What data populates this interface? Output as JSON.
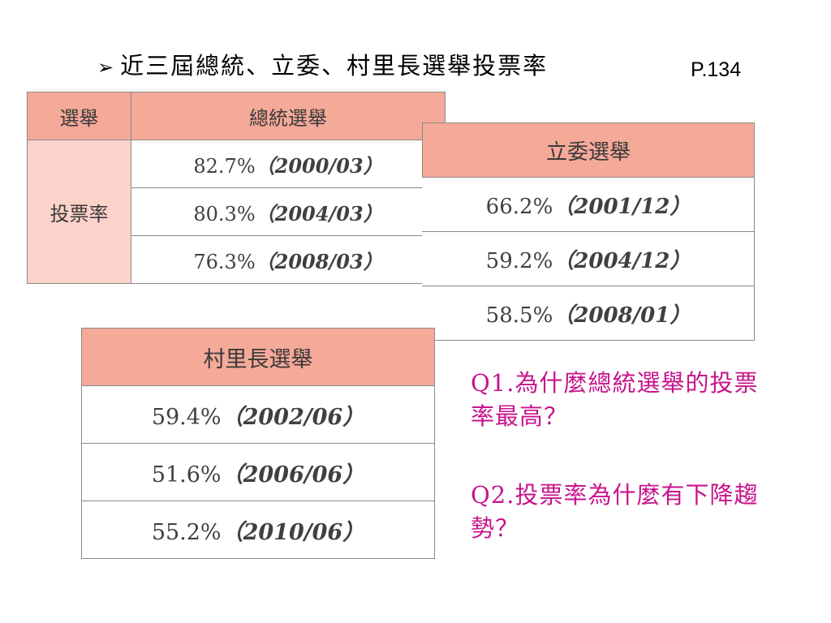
{
  "title": {
    "bullet": "➢",
    "text": "近三屆總統、立委、村里長選舉投票率",
    "page_ref": "P.134"
  },
  "presidential": {
    "col_label": "選舉",
    "header": "總統選舉",
    "row_label": "投票率",
    "rows": [
      {
        "rate": "82.7%",
        "date": "（2000/03）"
      },
      {
        "rate": "80.3%",
        "date": "（2004/03）"
      },
      {
        "rate": "76.3%",
        "date": "（2008/03）"
      }
    ]
  },
  "legislative": {
    "header": "立委選舉",
    "rows": [
      {
        "rate": "66.2%",
        "date": "（2001/12）"
      },
      {
        "rate": "59.2%",
        "date": "（2004/12）"
      },
      {
        "rate": "58.5%",
        "date": "（2008/01）"
      }
    ]
  },
  "village": {
    "header": "村里長選舉",
    "rows": [
      {
        "rate": "59.4%",
        "date": "（2002/06）"
      },
      {
        "rate": "51.6%",
        "date": "（2006/06）"
      },
      {
        "rate": "55.2%",
        "date": "（2010/06）"
      }
    ]
  },
  "questions": {
    "q1": "Q1.為什麼總統選舉的投票率最高？",
    "q2": "Q2.投票率為什麼有下降趨勢？"
  },
  "colors": {
    "header_fill": "#f5a999",
    "label_fill": "#fcd2ca",
    "question_text": "#c8148c"
  }
}
